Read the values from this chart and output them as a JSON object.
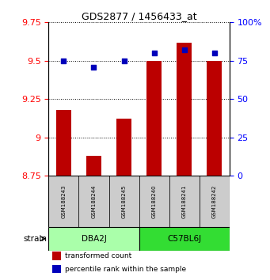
{
  "title": "GDS2877 / 1456433_at",
  "samples": [
    "GSM188243",
    "GSM188244",
    "GSM188245",
    "GSM188240",
    "GSM188241",
    "GSM188242"
  ],
  "groups": [
    {
      "name": "DBA2J",
      "indices": [
        0,
        1,
        2
      ],
      "color": "#aaffaa"
    },
    {
      "name": "C57BL6J",
      "indices": [
        3,
        4,
        5
      ],
      "color": "#33dd33"
    }
  ],
  "red_values": [
    9.18,
    8.88,
    9.12,
    9.5,
    9.62,
    9.5
  ],
  "blue_values_pct": [
    75,
    71,
    75,
    80,
    82,
    80
  ],
  "ymin": 8.75,
  "ymax": 9.75,
  "yticks": [
    8.75,
    9.0,
    9.25,
    9.5,
    9.75
  ],
  "ytick_labels": [
    "8.75",
    "9",
    "9.25",
    "9.5",
    "9.75"
  ],
  "y2min": 0,
  "y2max": 100,
  "y2ticks": [
    0,
    25,
    50,
    75,
    100
  ],
  "y2tick_labels": [
    "0",
    "25",
    "50",
    "75",
    "100%"
  ],
  "bar_color": "#BB0000",
  "dot_color": "#0000BB",
  "bar_width": 0.5,
  "legend_red": "transformed count",
  "legend_blue": "percentile rank within the sample",
  "strain_label": "strain",
  "sample_box_color": "#cccccc",
  "figsize": [
    3.41,
    3.54
  ],
  "dpi": 100
}
